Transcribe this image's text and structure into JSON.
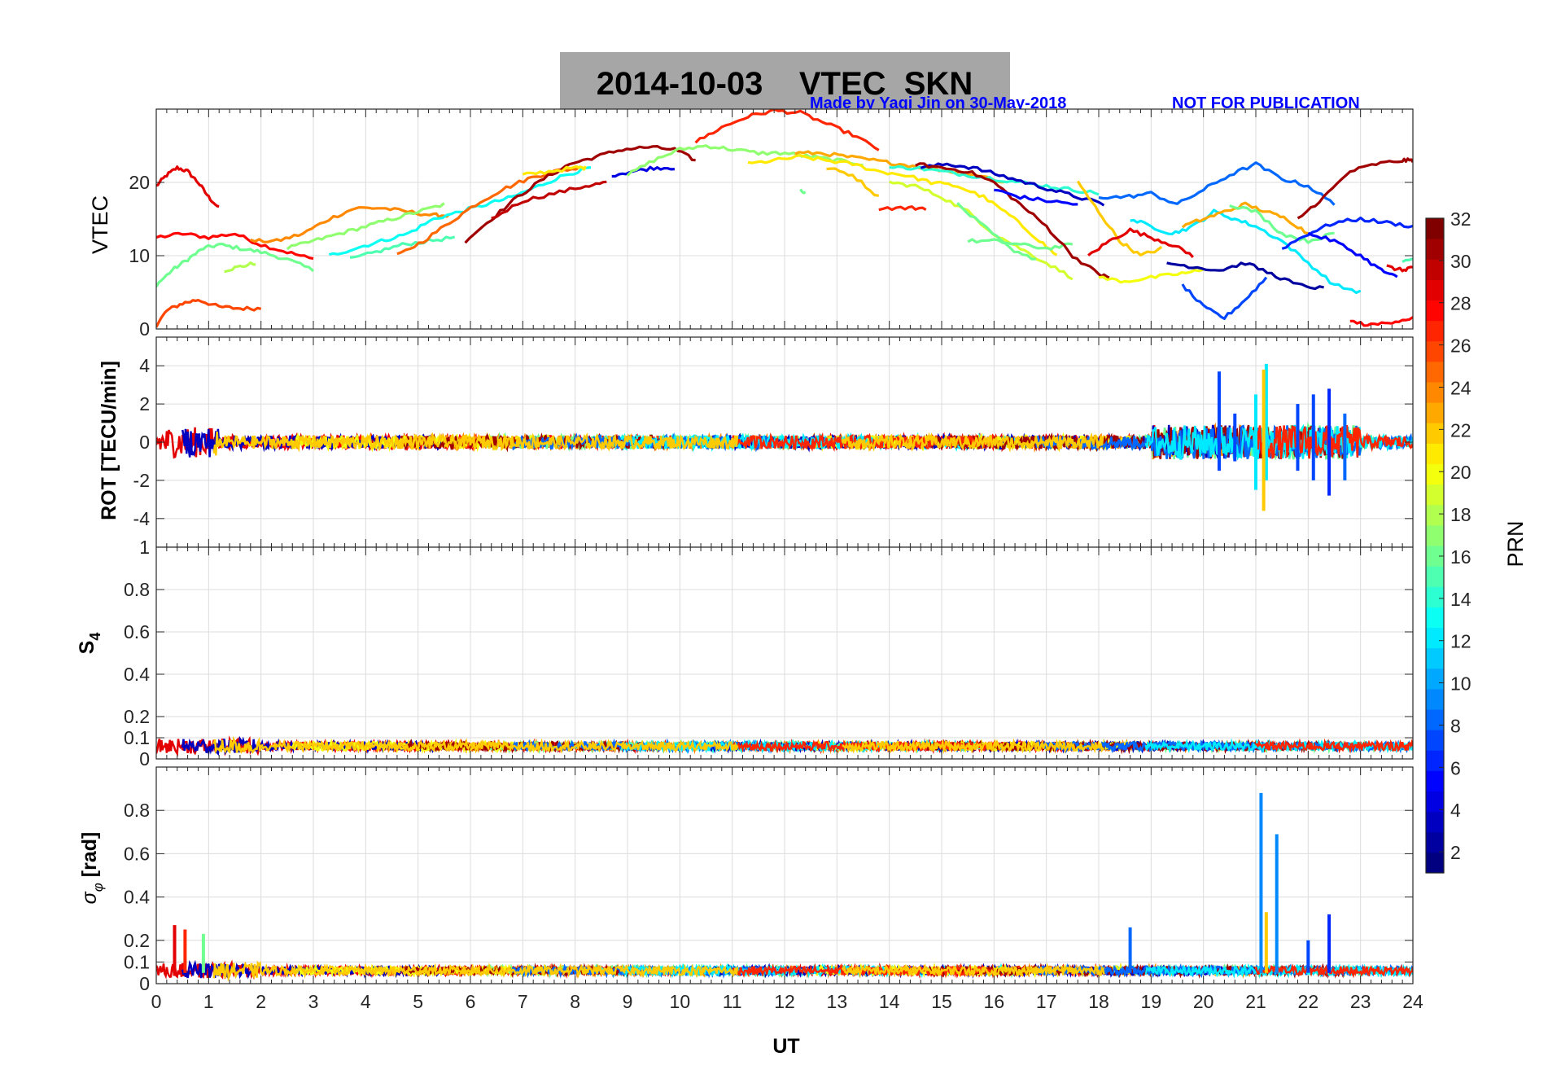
{
  "title": "2014-10-03    VTEC  SKN",
  "credit": "Made by Yaqi Jin on 30-May-2018",
  "notice": "NOT FOR PUBLICATION",
  "xlabel": "UT",
  "colorbar": {
    "label": "PRN",
    "min": 1,
    "max": 32,
    "ticks": [
      "2",
      "4",
      "6",
      "8",
      "10",
      "12",
      "14",
      "16",
      "18",
      "20",
      "22",
      "24",
      "26",
      "28",
      "30",
      "32"
    ],
    "colormap": "jet"
  },
  "chart_data": [
    {
      "type": "line",
      "name_key": "vtec",
      "ylabel": "VTEC",
      "xlim": [
        0,
        24
      ],
      "ylim": [
        0,
        30
      ],
      "yticks": [
        "0",
        "10",
        "20"
      ],
      "grid": true,
      "series": [
        {
          "prn": 29,
          "x": [
            0,
            0.2,
            0.4,
            0.6,
            0.8,
            1.0,
            1.2
          ],
          "y": [
            19.5,
            21,
            22,
            21.5,
            20,
            18,
            16.5
          ]
        },
        {
          "prn": 28,
          "x": [
            0,
            0.5,
            1.0,
            1.5,
            2.0,
            2.5,
            3.0
          ],
          "y": [
            12.5,
            13,
            12.5,
            13,
            11.5,
            10.5,
            9.5
          ]
        },
        {
          "prn": 16,
          "x": [
            0,
            0.3,
            0.6,
            0.9,
            1.2,
            1.6,
            2.0,
            2.5,
            3.0
          ],
          "y": [
            6,
            8,
            9.5,
            11,
            11.5,
            11,
            10.5,
            9.5,
            8
          ]
        },
        {
          "prn": 26,
          "x": [
            0,
            0.2,
            0.5,
            0.8,
            1.2,
            1.6,
            2.0
          ],
          "y": [
            0.5,
            2.5,
            3.5,
            4,
            3,
            2.8,
            2.8
          ]
        },
        {
          "prn": 18,
          "x": [
            1.3,
            1.6,
            1.9
          ],
          "y": [
            8,
            8.5,
            9
          ]
        },
        {
          "prn": 24,
          "x": [
            1.8,
            2.3,
            2.8,
            3.3,
            3.8,
            4.3,
            4.8,
            5.3,
            5.6
          ],
          "y": [
            12,
            12,
            13,
            15,
            16.5,
            16.5,
            16,
            15.5,
            15.5
          ]
        },
        {
          "prn": 17,
          "x": [
            2.5,
            3.0,
            3.5,
            4.0,
            4.5,
            5.0,
            5.5
          ],
          "y": [
            11,
            12,
            13,
            14,
            15,
            16,
            17
          ]
        },
        {
          "prn": 13,
          "x": [
            3.3,
            3.8,
            4.3,
            4.8,
            5.3,
            5.8,
            6.3,
            6.8,
            7.3,
            7.8,
            8.3
          ],
          "y": [
            10,
            11,
            12,
            13,
            15,
            16,
            17,
            18,
            19.5,
            21,
            22
          ]
        },
        {
          "prn": 15,
          "x": [
            3.7,
            4.2,
            4.7,
            5.2,
            5.7
          ],
          "y": [
            9.5,
            10.5,
            11.5,
            12,
            12.5
          ]
        },
        {
          "prn": 25,
          "x": [
            4.6,
            5.1,
            5.6,
            6.1,
            6.6,
            7.1,
            7.6,
            8.1
          ],
          "y": [
            10,
            12,
            14.5,
            17,
            19,
            20.5,
            21.5,
            22
          ]
        },
        {
          "prn": 31,
          "x": [
            5.9,
            6.4,
            6.9,
            7.4,
            7.9,
            8.4,
            8.9,
            9.4,
            9.9,
            10.3
          ],
          "y": [
            12,
            15,
            18,
            20.5,
            22.5,
            23.5,
            24.5,
            24.8,
            24.5,
            23
          ]
        },
        {
          "prn": 30,
          "x": [
            6.4,
            7.0,
            7.6,
            8.2,
            8.6
          ],
          "y": [
            15,
            17.5,
            18.5,
            19.5,
            20
          ]
        },
        {
          "prn": 21,
          "x": [
            7.0,
            7.5,
            8.0,
            8.2
          ],
          "y": [
            21,
            21.5,
            22,
            22
          ]
        },
        {
          "prn": 4,
          "x": [
            8.7,
            9.1,
            9.5,
            9.9
          ],
          "y": [
            21,
            21.5,
            22,
            22
          ]
        },
        {
          "prn": 17,
          "x": [
            9.0,
            9.5,
            10.0,
            10.5,
            11.0,
            11.5,
            12.0,
            12.5,
            13.0,
            13.5
          ],
          "y": [
            21,
            23,
            24.5,
            25,
            24.5,
            24,
            24,
            23.5,
            23,
            22.5
          ]
        },
        {
          "prn": 27,
          "x": [
            10.3,
            10.8,
            11.3,
            11.8,
            12.3,
            12.8,
            13.3,
            13.8
          ],
          "y": [
            25.5,
            27.5,
            29,
            29.8,
            29.5,
            28,
            26.5,
            24.5
          ]
        },
        {
          "prn": 21,
          "x": [
            11.3,
            11.8,
            12.3,
            12.8,
            13.3,
            13.8,
            14.3,
            14.8,
            15.3,
            15.8,
            16.3,
            16.8,
            17.2
          ],
          "y": [
            22.5,
            23,
            23.5,
            23,
            22.5,
            21.5,
            21,
            20,
            19.5,
            18,
            15.5,
            12.5,
            10
          ]
        },
        {
          "prn": 23,
          "x": [
            12.2,
            12.7,
            13.2,
            13.7,
            14.2,
            14.7,
            15.2,
            15.7,
            16.2
          ],
          "y": [
            24,
            24,
            23.5,
            23,
            22.5,
            22,
            21.5,
            21,
            20
          ]
        },
        {
          "prn": 16,
          "x": [
            12.3,
            12.4
          ],
          "y": [
            19,
            18.5
          ]
        },
        {
          "prn": 22,
          "x": [
            12.8,
            13.3,
            13.8
          ],
          "y": [
            22,
            21,
            18
          ]
        },
        {
          "prn": 27,
          "x": [
            13.8,
            14.3,
            14.7
          ],
          "y": [
            16.5,
            16.5,
            16.5
          ]
        },
        {
          "prn": 14,
          "x": [
            14.0,
            14.5,
            15.0,
            15.5,
            16.0,
            16.5,
            17.0,
            17.5,
            18.0
          ],
          "y": [
            22,
            22,
            21.5,
            21,
            20.5,
            20,
            19.5,
            19,
            18.5
          ]
        },
        {
          "prn": 3,
          "x": [
            14.6,
            15.1,
            15.6,
            16.1,
            16.6,
            17.1,
            17.6,
            18.1
          ],
          "y": [
            22,
            22.5,
            22,
            21,
            20,
            19,
            18,
            17
          ]
        },
        {
          "prn": 19,
          "x": [
            14.0,
            14.5,
            15.0,
            15.5,
            16.0,
            16.5,
            17.0,
            17.5
          ],
          "y": [
            20,
            19.5,
            18,
            16,
            13,
            11,
            9,
            7
          ]
        },
        {
          "prn": 16,
          "x": [
            15.3,
            15.8,
            16.3,
            16.8
          ],
          "y": [
            17,
            14,
            11,
            9.5
          ]
        },
        {
          "prn": 16,
          "x": [
            15.5,
            16.0,
            16.5,
            17.0,
            17.5
          ],
          "y": [
            12,
            12,
            11.5,
            11,
            11.5
          ]
        },
        {
          "prn": 31,
          "x": [
            14.5,
            15.0,
            15.5,
            16.0,
            16.5,
            17.0,
            17.5,
            18.0,
            18.2
          ],
          "y": [
            22.5,
            22,
            21.5,
            20,
            17,
            14,
            10,
            7.5,
            7
          ]
        },
        {
          "prn": 5,
          "x": [
            16.0,
            16.5,
            17.0,
            17.6
          ],
          "y": [
            19,
            18,
            17.5,
            17
          ]
        },
        {
          "prn": 22,
          "x": [
            17.6,
            18.0,
            18.4,
            18.8,
            19.2
          ],
          "y": [
            20,
            16,
            12,
            10,
            11
          ]
        },
        {
          "prn": 29,
          "x": [
            17.8,
            18.2,
            18.6,
            19.0,
            19.4,
            19.8
          ],
          "y": [
            10,
            12,
            13.5,
            12.5,
            11.5,
            10
          ]
        },
        {
          "prn": 20,
          "x": [
            18.0,
            18.5,
            19.0,
            19.5,
            20.0
          ],
          "y": [
            7,
            6.5,
            7,
            7.5,
            8
          ]
        },
        {
          "prn": 8,
          "x": [
            18.0,
            18.5,
            19.0,
            19.5,
            20.0,
            20.5,
            21.0,
            21.5,
            22.0,
            22.5
          ],
          "y": [
            18,
            18,
            18.5,
            17,
            19,
            21,
            22.5,
            20.5,
            19.5,
            17
          ]
        },
        {
          "prn": 12,
          "x": [
            18.6,
            19.0,
            19.4,
            19.8,
            20.2,
            20.6,
            21.0,
            21.5,
            22.0,
            22.5,
            23.0
          ],
          "y": [
            15,
            14,
            13,
            14,
            16,
            15,
            14,
            12,
            9,
            6,
            5
          ]
        },
        {
          "prn": 23,
          "x": [
            19.6,
            20.0,
            20.4,
            20.8,
            21.2,
            21.6,
            22.0
          ],
          "y": [
            14,
            15,
            16,
            17,
            16,
            15,
            13
          ]
        },
        {
          "prn": 16,
          "x": [
            20.5,
            21.0,
            21.5,
            22.0,
            22.5
          ],
          "y": [
            17,
            16,
            13,
            12,
            13
          ]
        },
        {
          "prn": 2,
          "x": [
            19.3,
            19.8,
            20.3,
            20.8,
            21.3,
            21.8,
            22.3
          ],
          "y": [
            9,
            8.5,
            8,
            9,
            7.5,
            6,
            5.5
          ]
        },
        {
          "prn": 7,
          "x": [
            19.6,
            20.0,
            20.4,
            20.8,
            21.2
          ],
          "y": [
            6,
            3,
            1.5,
            4,
            7
          ]
        },
        {
          "prn": 6,
          "x": [
            21.5,
            22.0,
            22.5,
            23.0,
            23.5,
            24.0
          ],
          "y": [
            11,
            13,
            14.5,
            15,
            14.5,
            14
          ]
        },
        {
          "prn": 5,
          "x": [
            22.0,
            22.5,
            23.0,
            23.4,
            23.7
          ],
          "y": [
            13,
            12,
            10,
            8,
            7
          ]
        },
        {
          "prn": 31,
          "x": [
            21.8,
            22.3,
            22.8,
            23.3,
            23.8,
            24.0
          ],
          "y": [
            15,
            18,
            21.5,
            22.5,
            23,
            23
          ]
        },
        {
          "prn": 28,
          "x": [
            22.8,
            23.2,
            23.6,
            24.0
          ],
          "y": [
            1,
            0.5,
            1,
            1.5
          ]
        },
        {
          "prn": 29,
          "x": [
            23.5,
            23.8,
            24.0
          ],
          "y": [
            8.5,
            8,
            8.5
          ]
        },
        {
          "prn": 15,
          "x": [
            23.8,
            24.0
          ],
          "y": [
            9,
            9.5
          ]
        }
      ]
    },
    {
      "type": "line",
      "name_key": "rot",
      "ylabel": "ROT [TECU/min]",
      "xlim": [
        0,
        24
      ],
      "ylim": [
        -5.5,
        5.5
      ],
      "yticks": [
        "-4",
        "-2",
        "0",
        "2",
        "4"
      ],
      "grid": true,
      "spikes": [
        {
          "prn": 7,
          "x": 20.3,
          "y": [
            -1.5,
            3.7
          ]
        },
        {
          "prn": 7,
          "x": 20.6,
          "y": [
            -1.0,
            1.5
          ]
        },
        {
          "prn": 12,
          "x": 21.0,
          "y": [
            -2.5,
            2.5
          ]
        },
        {
          "prn": 12,
          "x": 21.2,
          "y": [
            -2.0,
            4.1
          ]
        },
        {
          "prn": 22,
          "x": 21.15,
          "y": [
            -3.6,
            3.8
          ]
        },
        {
          "prn": 7,
          "x": 21.8,
          "y": [
            -1.5,
            2.0
          ]
        },
        {
          "prn": 7,
          "x": 22.1,
          "y": [
            -2.0,
            2.5
          ]
        },
        {
          "prn": 6,
          "x": 22.4,
          "y": [
            -2.8,
            2.8
          ]
        },
        {
          "prn": 8,
          "x": 22.7,
          "y": [
            -2.0,
            1.5
          ]
        }
      ]
    },
    {
      "type": "line",
      "name_key": "s4",
      "ylabel": "S4",
      "xlim": [
        0,
        24
      ],
      "ylim": [
        0,
        1
      ],
      "yticks": [
        "0",
        "0.1",
        "0.2",
        "0.4",
        "0.6",
        "0.8",
        "1"
      ],
      "grid": true,
      "baseline": 0.06
    },
    {
      "type": "line",
      "name_key": "sigma",
      "ylabel": "σφ [rad]",
      "xlim": [
        0,
        24
      ],
      "ylim": [
        0,
        1
      ],
      "yticks": [
        "0",
        "0.1",
        "0.2",
        "0.4",
        "0.6",
        "0.8"
      ],
      "xticks": [
        "0",
        "1",
        "2",
        "3",
        "4",
        "5",
        "6",
        "7",
        "8",
        "9",
        "10",
        "11",
        "12",
        "13",
        "14",
        "15",
        "16",
        "17",
        "18",
        "19",
        "20",
        "21",
        "22",
        "23",
        "24"
      ],
      "grid": true,
      "baseline": 0.06,
      "spikes": [
        {
          "prn": 8,
          "x": 18.6,
          "y": [
            0.05,
            0.26
          ]
        },
        {
          "prn": 9,
          "x": 21.1,
          "y": [
            0.05,
            0.88
          ]
        },
        {
          "prn": 9,
          "x": 21.4,
          "y": [
            0.05,
            0.69
          ]
        },
        {
          "prn": 22,
          "x": 21.2,
          "y": [
            0.05,
            0.33
          ]
        },
        {
          "prn": 6,
          "x": 22.4,
          "y": [
            0.05,
            0.32
          ]
        },
        {
          "prn": 7,
          "x": 22.0,
          "y": [
            0.05,
            0.2
          ]
        },
        {
          "prn": 16,
          "x": 0.9,
          "y": [
            0.05,
            0.23
          ]
        },
        {
          "prn": 29,
          "x": 0.35,
          "y": [
            0.05,
            0.27
          ]
        },
        {
          "prn": 27,
          "x": 0.55,
          "y": [
            0.05,
            0.25
          ]
        }
      ]
    }
  ]
}
